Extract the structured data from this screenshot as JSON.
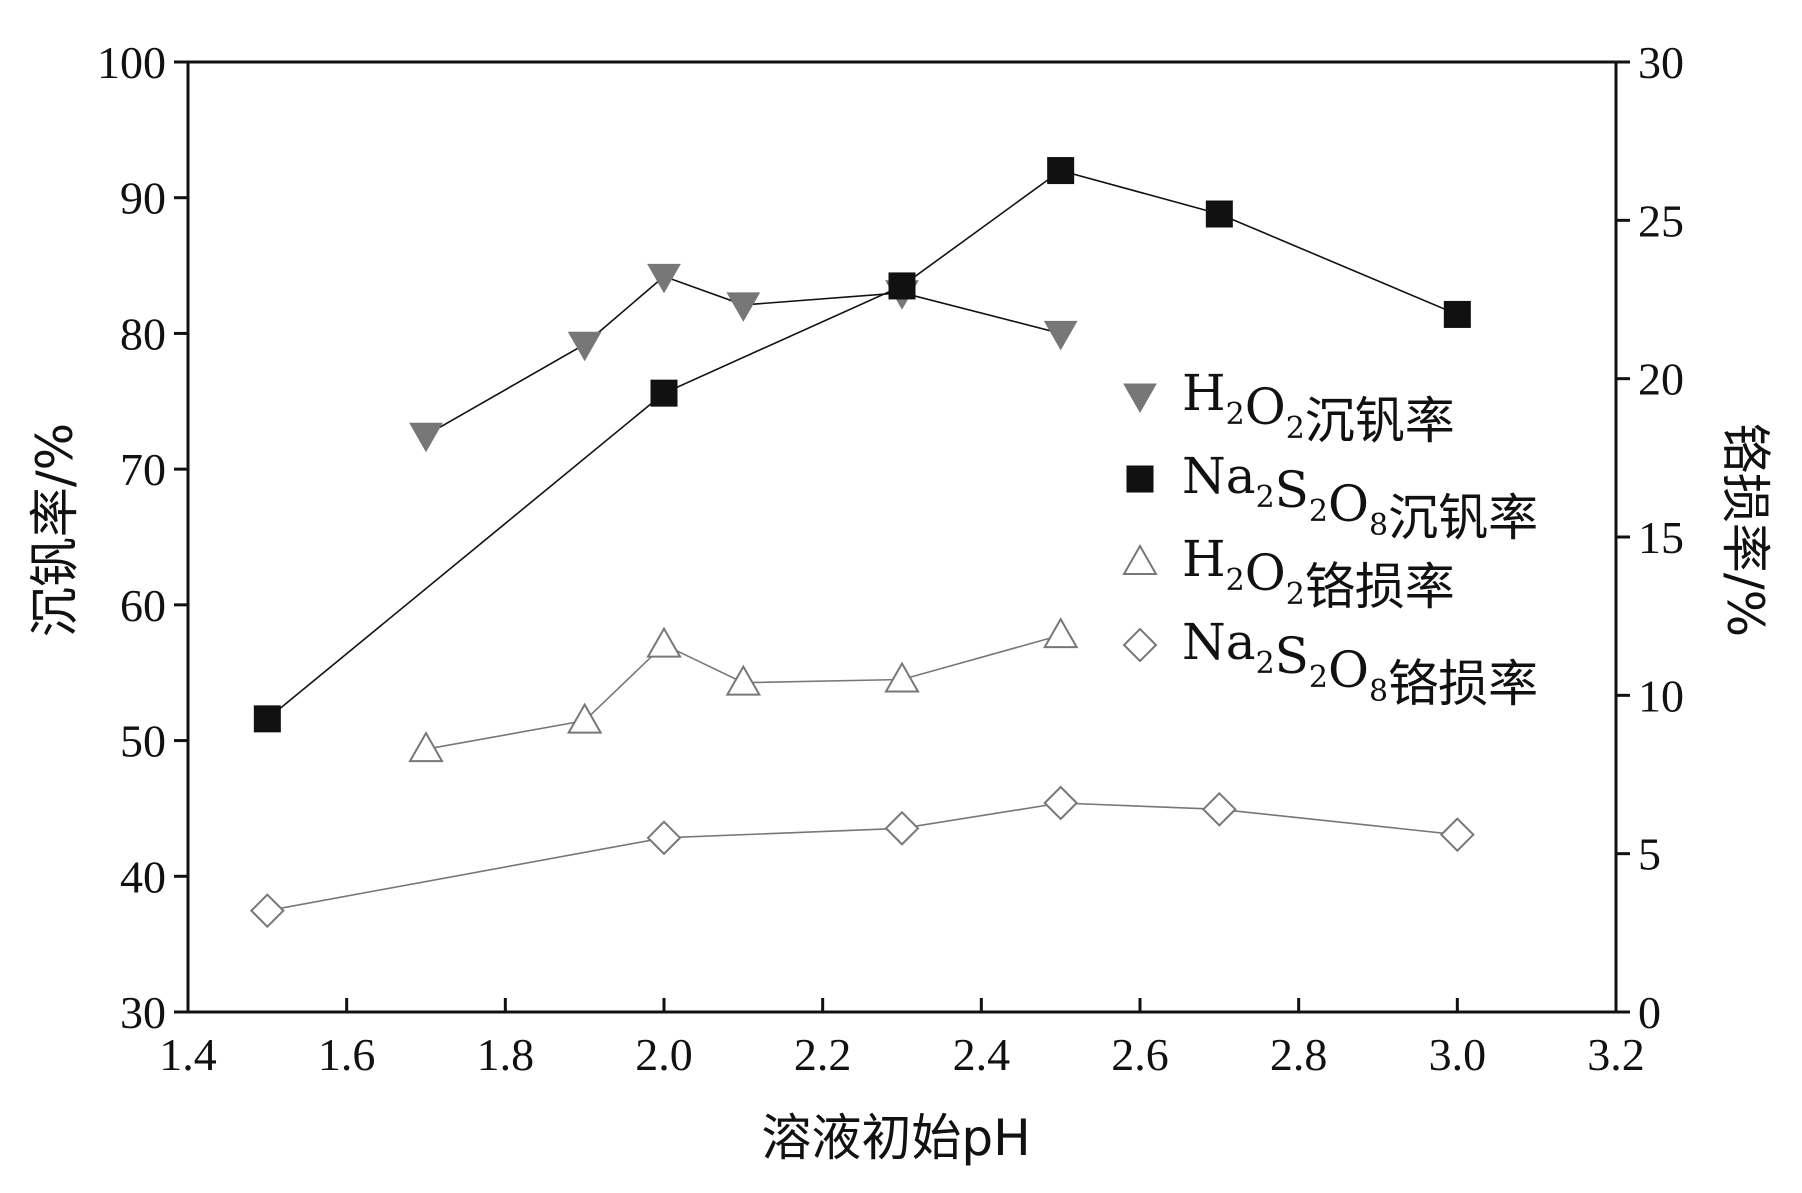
{
  "chart_data": {
    "type": "line",
    "x": {
      "label": "溶液初始pH",
      "min": 1.4,
      "max": 3.2,
      "ticks": [
        "1.4",
        "1.6",
        "1.8",
        "2.0",
        "2.2",
        "2.4",
        "2.6",
        "2.8",
        "3.0",
        "3.2"
      ]
    },
    "y_left": {
      "label": "沉钒率/%",
      "min": 30,
      "max": 100,
      "ticks": [
        "30",
        "40",
        "50",
        "60",
        "70",
        "80",
        "90",
        "100"
      ]
    },
    "y_right": {
      "label": "铬损率/%",
      "min": 0,
      "max": 30,
      "ticks": [
        "0",
        "5",
        "10",
        "15",
        "20",
        "25",
        "30"
      ]
    },
    "grid": false,
    "legend_position": "right",
    "series": [
      {
        "name": "H2O2沉钒率",
        "legend_base": [
          "H",
          "O",
          "沉钒率"
        ],
        "legend_subs": [
          "2",
          "2"
        ],
        "axis": "left",
        "marker": "triangle-down-filled",
        "color": "#777777",
        "x": [
          1.7,
          1.9,
          2.0,
          2.1,
          2.3,
          2.5
        ],
        "y": [
          72.5,
          79.2,
          84.2,
          82.1,
          83.0,
          80.0
        ]
      },
      {
        "name": "Na2S2O8沉钒率",
        "legend_base": [
          "Na",
          "S",
          "O",
          "沉钒率"
        ],
        "legend_subs": [
          "2",
          "2",
          "8"
        ],
        "axis": "left",
        "marker": "square-filled",
        "color": "#111111",
        "x": [
          1.5,
          2.0,
          2.3,
          2.5,
          2.7,
          3.0
        ],
        "y": [
          51.6,
          75.6,
          83.5,
          92.0,
          88.8,
          81.4
        ]
      },
      {
        "name": "H2O2铬损率",
        "legend_base": [
          "H",
          "O",
          "铬损率"
        ],
        "legend_subs": [
          "2",
          "2"
        ],
        "axis": "right",
        "marker": "triangle-up-open",
        "color": "#777777",
        "x": [
          1.7,
          1.9,
          2.0,
          2.1,
          2.3,
          2.5
        ],
        "y": [
          8.3,
          9.2,
          11.6,
          10.4,
          10.5,
          11.9
        ]
      },
      {
        "name": "Na2S2O8铬损率",
        "legend_base": [
          "Na",
          "S",
          "O",
          "铬损率"
        ],
        "legend_subs": [
          "2",
          "2",
          "8"
        ],
        "axis": "right",
        "marker": "diamond-open",
        "color": "#777777",
        "x": [
          1.5,
          2.0,
          2.3,
          2.5,
          2.7,
          3.0
        ],
        "y": [
          3.2,
          5.5,
          5.8,
          6.6,
          6.4,
          5.6
        ]
      }
    ]
  }
}
